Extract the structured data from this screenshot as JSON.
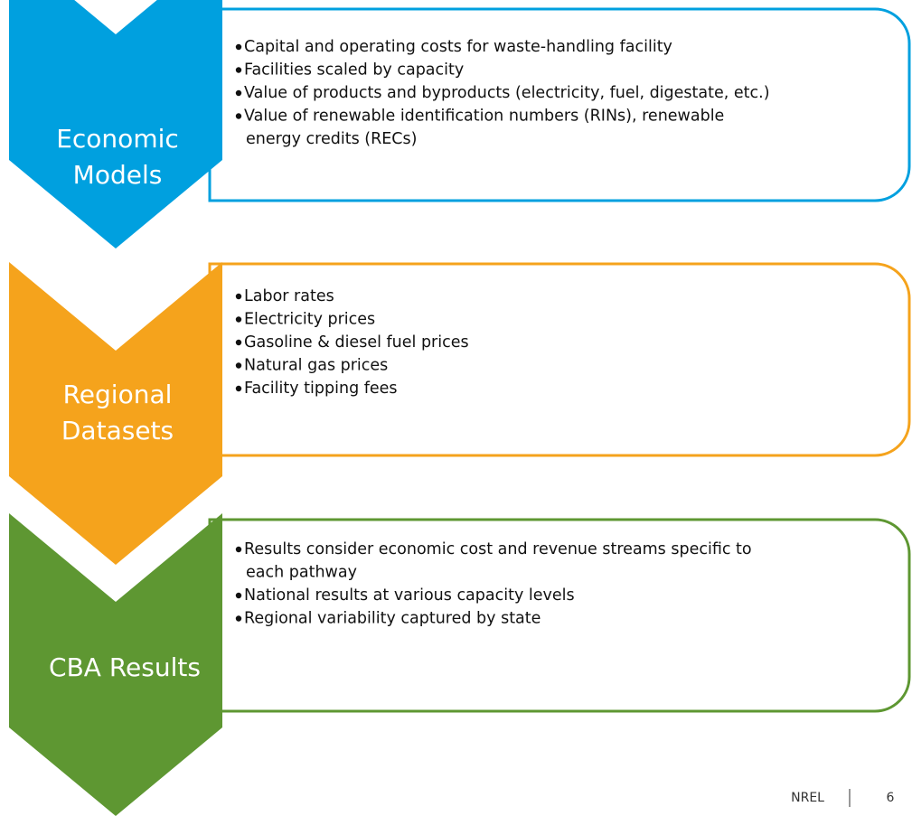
{
  "sections": [
    {
      "label": [
        "Economic",
        "Models"
      ],
      "color": "#00a0df",
      "bullets": [
        [
          "Capital and operating costs for waste-handling facility"
        ],
        [
          "Facilities scaled by capacity"
        ],
        [
          "Value of products and byproducts (electricity, fuel, digestate, etc.)"
        ],
        [
          "Value of renewable identification numbers (RINs), renewable",
          "energy credits (RECs)"
        ]
      ]
    },
    {
      "label": [
        "Regional",
        "Datasets"
      ],
      "color": "#f5a31c",
      "bullets": [
        [
          "Labor rates"
        ],
        [
          "Electricity prices"
        ],
        [
          "Gasoline & diesel fuel prices"
        ],
        [
          "Natural gas prices"
        ],
        [
          "Facility tipping fees"
        ]
      ]
    },
    {
      "label": [
        "CBA Results"
      ],
      "color": "#5e9732",
      "bullets": [
        [
          "Results consider economic cost and revenue streams specific to",
          "each pathway"
        ],
        [
          "National results at various capacity levels"
        ],
        [
          "Regional variability captured by state"
        ]
      ]
    }
  ],
  "footer": {
    "org": "NREL",
    "page": "6"
  }
}
